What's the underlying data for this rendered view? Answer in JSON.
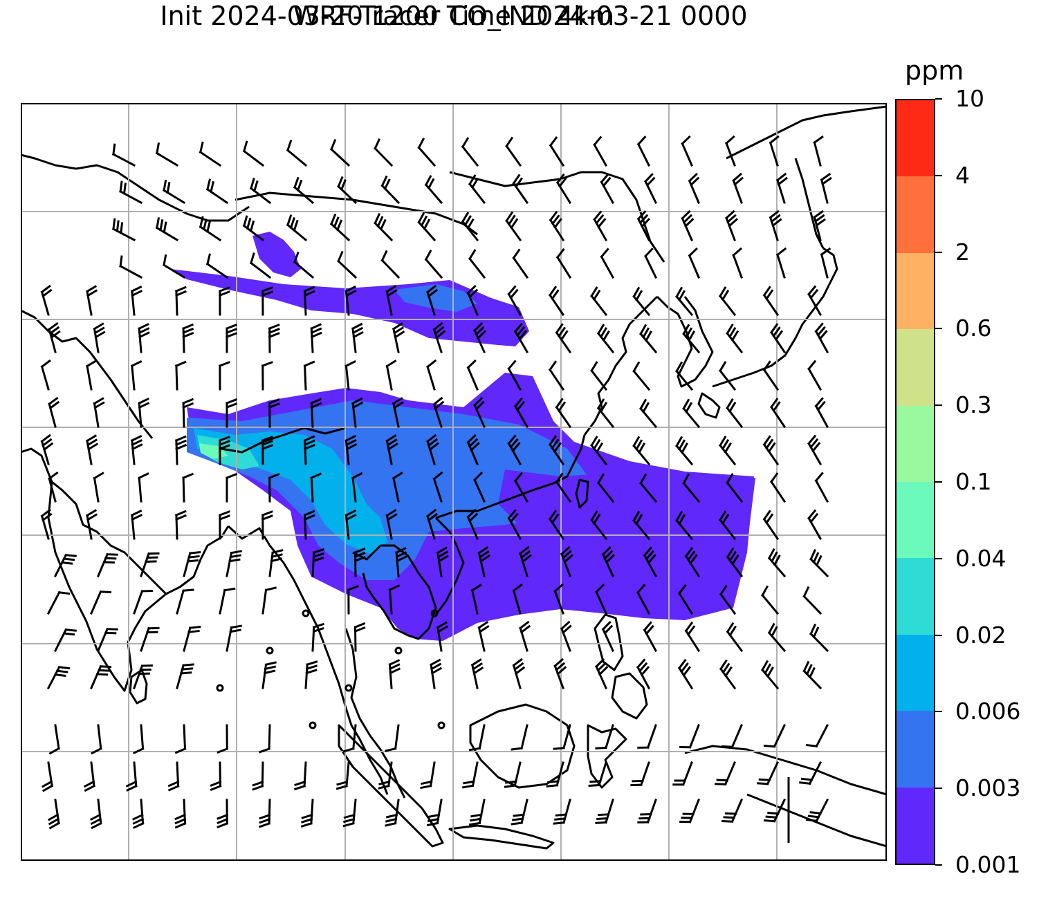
{
  "title": {
    "line1": "WRF-Tracer CO_IND 4km",
    "line2": "Init 2024-03-20 1200 Time 2024-03-21 0000"
  },
  "colorbar": {
    "unit": "ppm",
    "ticks": [
      "0.001",
      "0.003",
      "0.006",
      "0.02",
      "0.04",
      "0.1",
      "0.3",
      "0.6",
      "2",
      "4",
      "10"
    ],
    "colors": [
      "#6128fb",
      "#3474f1",
      "#02b1ec",
      "#2fdbd5",
      "#6cf9bc",
      "#9af89f",
      "#cfe28a",
      "#feb163",
      "#ff703d",
      "#ff2a16"
    ]
  },
  "map": {
    "gridlines": true,
    "coastline_color": "#000000",
    "gridline_color": "#b0b0b0",
    "wind_barb_color": "#000000"
  }
}
